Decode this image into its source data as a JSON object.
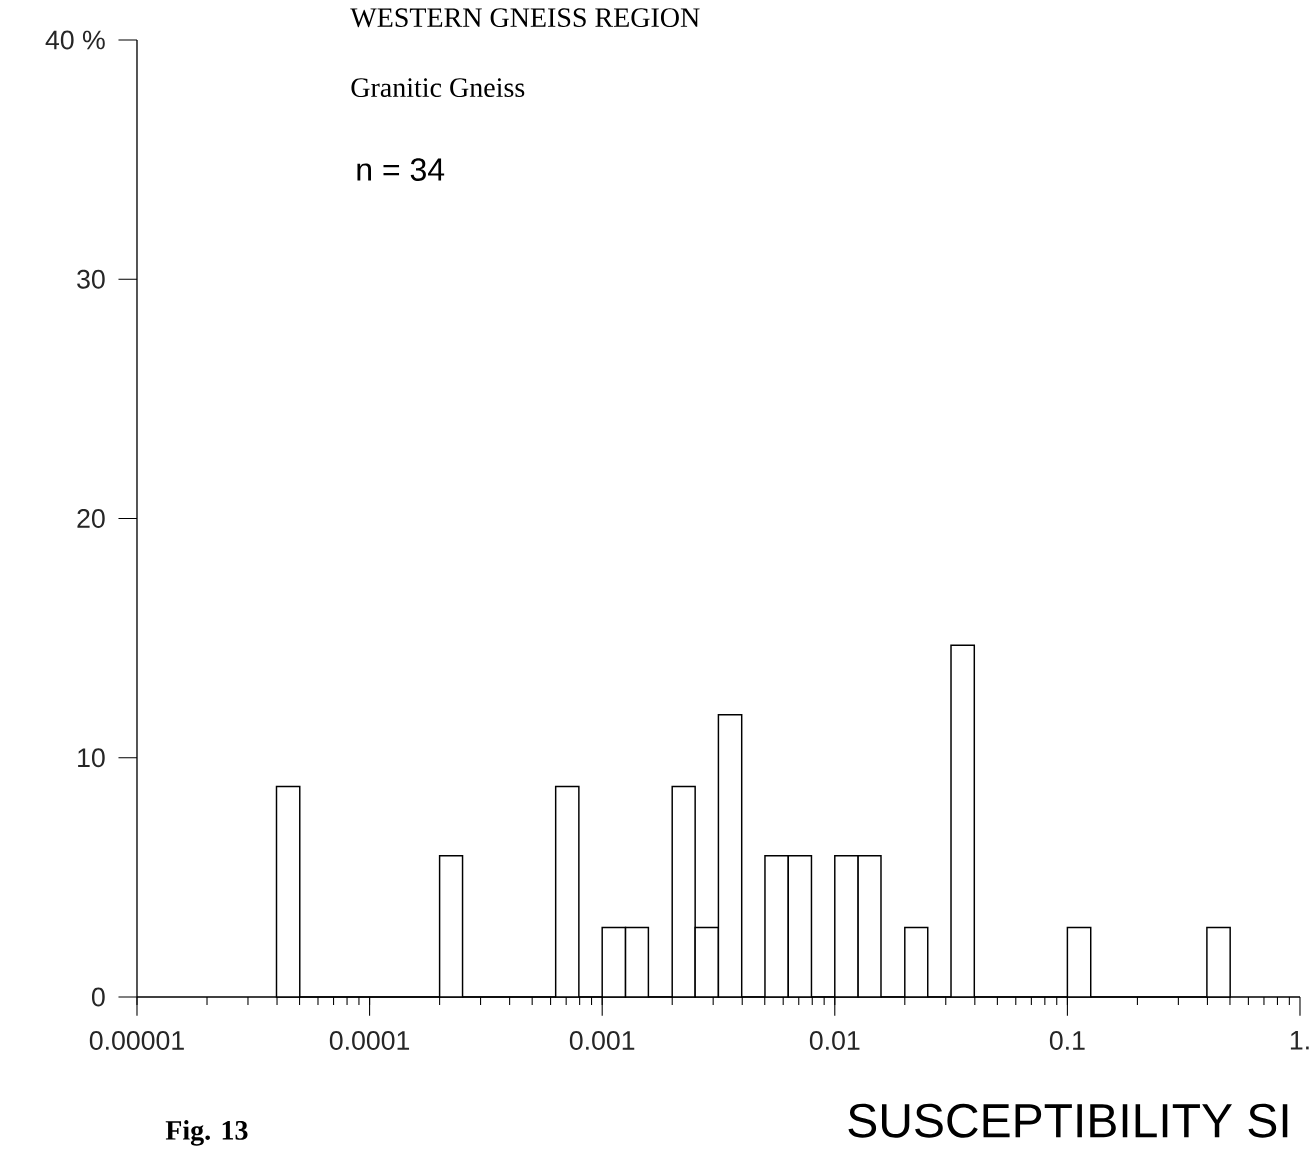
{
  "chart_data": {
    "type": "histogram",
    "title": "WESTERN GNEISS REGION",
    "subtitle": "Granitic Gneiss",
    "xlabel": "SUSCEPTIBILITY    SI",
    "annotations": [
      "n =   34",
      "**Fig. 13**"
    ],
    "log": "x",
    "bins": [
      3.98e-05,
      5.01e-05,
      0.0002,
      0.000251,
      0.000631,
      0.000794,
      0.001,
      0.00126,
      0.00158,
      0.002,
      0.00251,
      0.00316,
      0.00398,
      0.00501,
      0.00631,
      0.00794,
      0.01,
      0.0126,
      0.0158,
      0.02,
      0.0251,
      0.0316,
      0.0398,
      0.1,
      0.126,
      0.398,
      0.501
    ],
    "values": [
      8.8,
      0,
      5.9,
      0,
      8.8,
      0,
      2.9,
      2.9,
      0,
      8.8,
      2.9,
      11.8,
      0,
      5.9,
      5.9,
      0,
      5.9,
      5.9,
      0,
      2.9,
      0,
      14.7,
      0,
      2.9,
      0,
      2.9
    ],
    "color": "#ffffff",
    "xlim": [
      1e-05,
      1
    ],
    "xticks": [
      {
        "value": 1e-05,
        "label": "0.00001"
      },
      {
        "value": 0.0001,
        "label": "0.0001"
      },
      {
        "value": 0.001,
        "label": "0.001"
      },
      {
        "value": 0.01,
        "label": "0.01"
      },
      {
        "value": 0.1,
        "label": "0.1"
      },
      {
        "value": 1,
        "label": "1."
      }
    ],
    "ylim": [
      0,
      40
    ],
    "yticks": [
      0,
      10,
      20,
      30,
      {
        "value": 40,
        "label": "40 %"
      }
    ],
    "grid": false
  }
}
